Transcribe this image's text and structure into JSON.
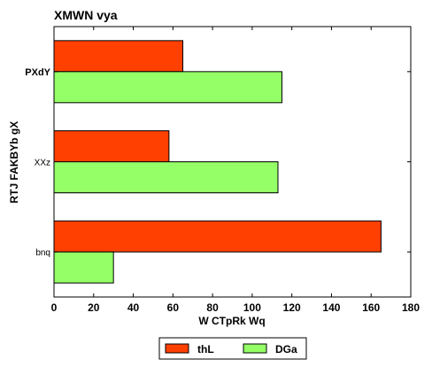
{
  "chart_data": {
    "type": "bar",
    "orientation": "horizontal",
    "title": "XMWN vya",
    "xlabel": "W CTpRk   Wq",
    "ylabel": "RTJ FAKBYb gX",
    "categories": [
      "PXdY",
      "XXz",
      "bnq"
    ],
    "series": [
      {
        "name": "thL",
        "color": "#ff4000",
        "values": [
          65,
          58,
          165
        ]
      },
      {
        "name": "DGa",
        "color": "#94ff66",
        "values": [
          115,
          113,
          30
        ]
      }
    ],
    "xlim": [
      0,
      180
    ],
    "xticks": [
      "0",
      "20",
      "40",
      "60",
      "80",
      "100",
      "120",
      "140",
      "160",
      "180"
    ],
    "grid": false,
    "legend_position": "bottom-center"
  }
}
